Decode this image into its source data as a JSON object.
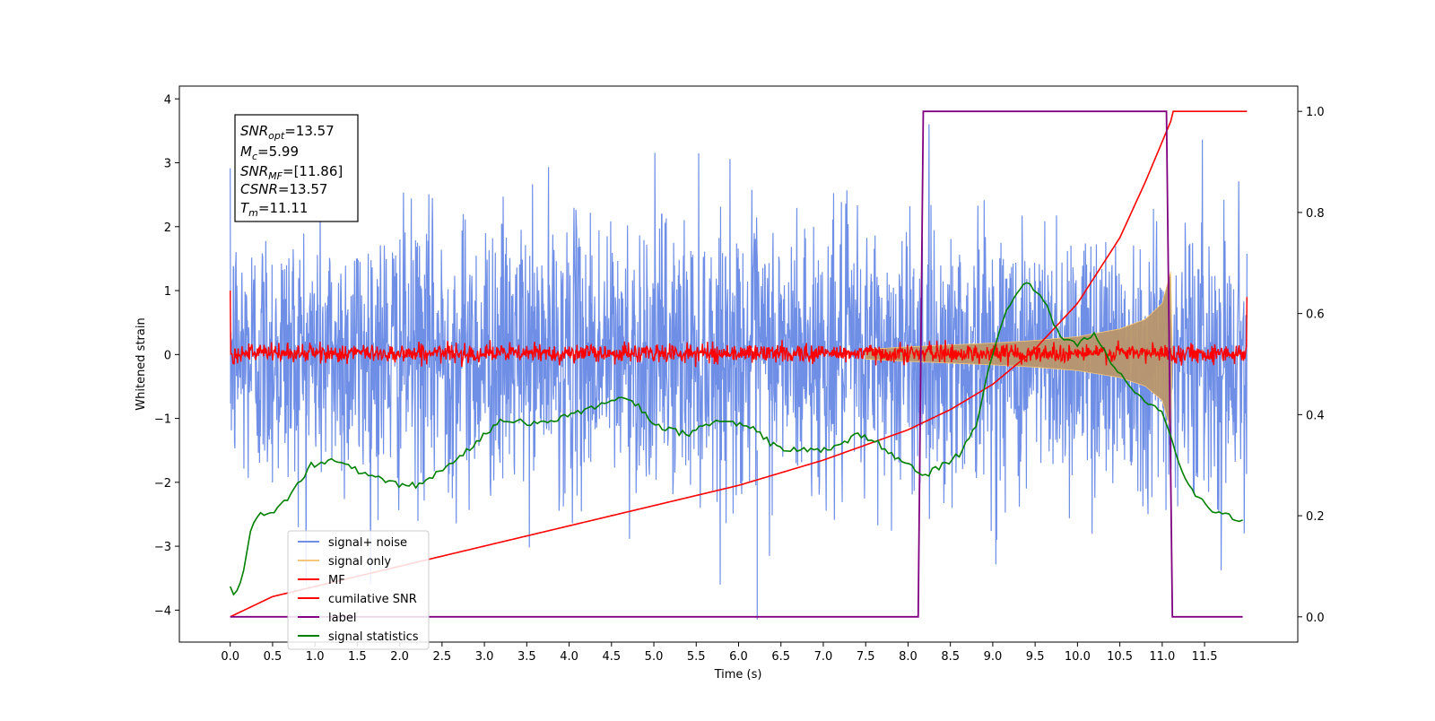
{
  "chart_data": {
    "type": "line",
    "xlabel": "Time (s)",
    "ylabel": "Whitened strain",
    "xlim": [
      -0.6,
      12.6
    ],
    "ylim": [
      -4.5,
      4.2
    ],
    "y2lim": [
      -0.05,
      1.05
    ],
    "x_ticks": [
      "0.0",
      "0.5",
      "1.0",
      "1.5",
      "2.0",
      "2.5",
      "3.0",
      "3.5",
      "4.0",
      "4.5",
      "5.0",
      "5.5",
      "6.0",
      "6.5",
      "7.0",
      "7.5",
      "8.0",
      "8.5",
      "9.0",
      "9.5",
      "10.0",
      "10.5",
      "11.0",
      "11.5"
    ],
    "y_ticks": [
      "4",
      "3",
      "2",
      "1",
      "0",
      "−1",
      "−2",
      "−3",
      "−4"
    ],
    "y2_ticks": [
      "1.0",
      "0.8",
      "0.6",
      "0.4",
      "0.2",
      "0.0"
    ],
    "grid": false,
    "legend_position": "lower-left",
    "annotation": {
      "snr_opt": {
        "symbol": "SNR",
        "sub": "opt",
        "value": "=13.57"
      },
      "mc": {
        "symbol": "M",
        "sub": "c",
        "value": "=5.99"
      },
      "snr_mf": {
        "symbol": "SNR",
        "sub": "MF",
        "value": "=[11.86]"
      },
      "csnr": {
        "symbol": "CSNR",
        "sub": "",
        "value": "=13.57"
      },
      "tm": {
        "symbol": "T",
        "sub": "m",
        "value": "=11.11"
      }
    },
    "series": [
      {
        "name": "signal+ noise",
        "color": "#6f8ee6",
        "axis": "left",
        "description_values": {
          "x_range": [
            0.0,
            12.0
          ],
          "amplitude_typical": 2.0,
          "peak": 3.8,
          "min": -4.15
        }
      },
      {
        "name": "signal only",
        "color": "#f5c77a",
        "axis": "left",
        "x": [
          7.5,
          8.0,
          8.5,
          9.0,
          9.5,
          10.0,
          10.5,
          10.8,
          11.0,
          11.1,
          11.12
        ],
        "envelope": [
          0.08,
          0.12,
          0.15,
          0.18,
          0.22,
          0.28,
          0.4,
          0.55,
          0.8,
          1.3,
          0.0
        ]
      },
      {
        "name": "MF",
        "color": "#ff0000",
        "axis": "left",
        "description_values": {
          "x_range": [
            0.0,
            12.0
          ],
          "amplitude_typical": 0.12,
          "start_value": 1.0,
          "end_value": 0.9
        }
      },
      {
        "name": "cumilative SNR",
        "color": "#ff0000",
        "axis": "right",
        "x": [
          0.0,
          0.5,
          1.0,
          2.0,
          3.0,
          4.0,
          5.0,
          6.0,
          7.0,
          8.0,
          8.5,
          9.0,
          9.5,
          10.0,
          10.5,
          10.8,
          11.0,
          11.1,
          11.13,
          12.0
        ],
        "y": [
          0.0,
          0.04,
          0.06,
          0.1,
          0.14,
          0.18,
          0.22,
          0.26,
          0.31,
          0.37,
          0.41,
          0.46,
          0.53,
          0.62,
          0.75,
          0.86,
          0.94,
          0.98,
          1.0,
          1.0
        ]
      },
      {
        "name": "label",
        "color": "#800080",
        "axis": "right",
        "x": [
          0.0,
          8.12,
          8.18,
          11.05,
          11.12,
          11.95
        ],
        "y": [
          0.0,
          0.0,
          1.0,
          1.0,
          0.0,
          0.0
        ]
      },
      {
        "name": "signal statistics",
        "color": "#008000",
        "axis": "right",
        "x": [
          0.0,
          0.05,
          0.15,
          0.25,
          0.35,
          0.45,
          0.6,
          0.8,
          0.95,
          1.05,
          1.2,
          1.4,
          1.6,
          1.8,
          2.0,
          2.2,
          2.4,
          2.6,
          2.8,
          3.0,
          3.2,
          3.4,
          3.6,
          3.8,
          4.0,
          4.2,
          4.4,
          4.6,
          4.8,
          5.0,
          5.2,
          5.4,
          5.6,
          5.8,
          6.0,
          6.2,
          6.4,
          6.6,
          6.8,
          7.0,
          7.2,
          7.4,
          7.6,
          7.8,
          8.0,
          8.2,
          8.4,
          8.6,
          8.8,
          9.0,
          9.2,
          9.4,
          9.6,
          9.8,
          10.0,
          10.2,
          10.4,
          10.6,
          10.8,
          11.0,
          11.1,
          11.2,
          11.4,
          11.6,
          11.8,
          11.95
        ],
        "y": [
          0.06,
          0.04,
          0.08,
          0.18,
          0.21,
          0.2,
          0.22,
          0.26,
          0.3,
          0.3,
          0.31,
          0.3,
          0.28,
          0.27,
          0.26,
          0.26,
          0.28,
          0.3,
          0.33,
          0.36,
          0.39,
          0.39,
          0.38,
          0.39,
          0.4,
          0.41,
          0.42,
          0.43,
          0.42,
          0.38,
          0.37,
          0.36,
          0.38,
          0.39,
          0.38,
          0.37,
          0.34,
          0.33,
          0.33,
          0.33,
          0.34,
          0.36,
          0.35,
          0.32,
          0.3,
          0.28,
          0.3,
          0.32,
          0.38,
          0.52,
          0.62,
          0.66,
          0.63,
          0.55,
          0.54,
          0.56,
          0.5,
          0.46,
          0.43,
          0.4,
          0.36,
          0.3,
          0.24,
          0.21,
          0.2,
          0.19
        ]
      }
    ]
  }
}
